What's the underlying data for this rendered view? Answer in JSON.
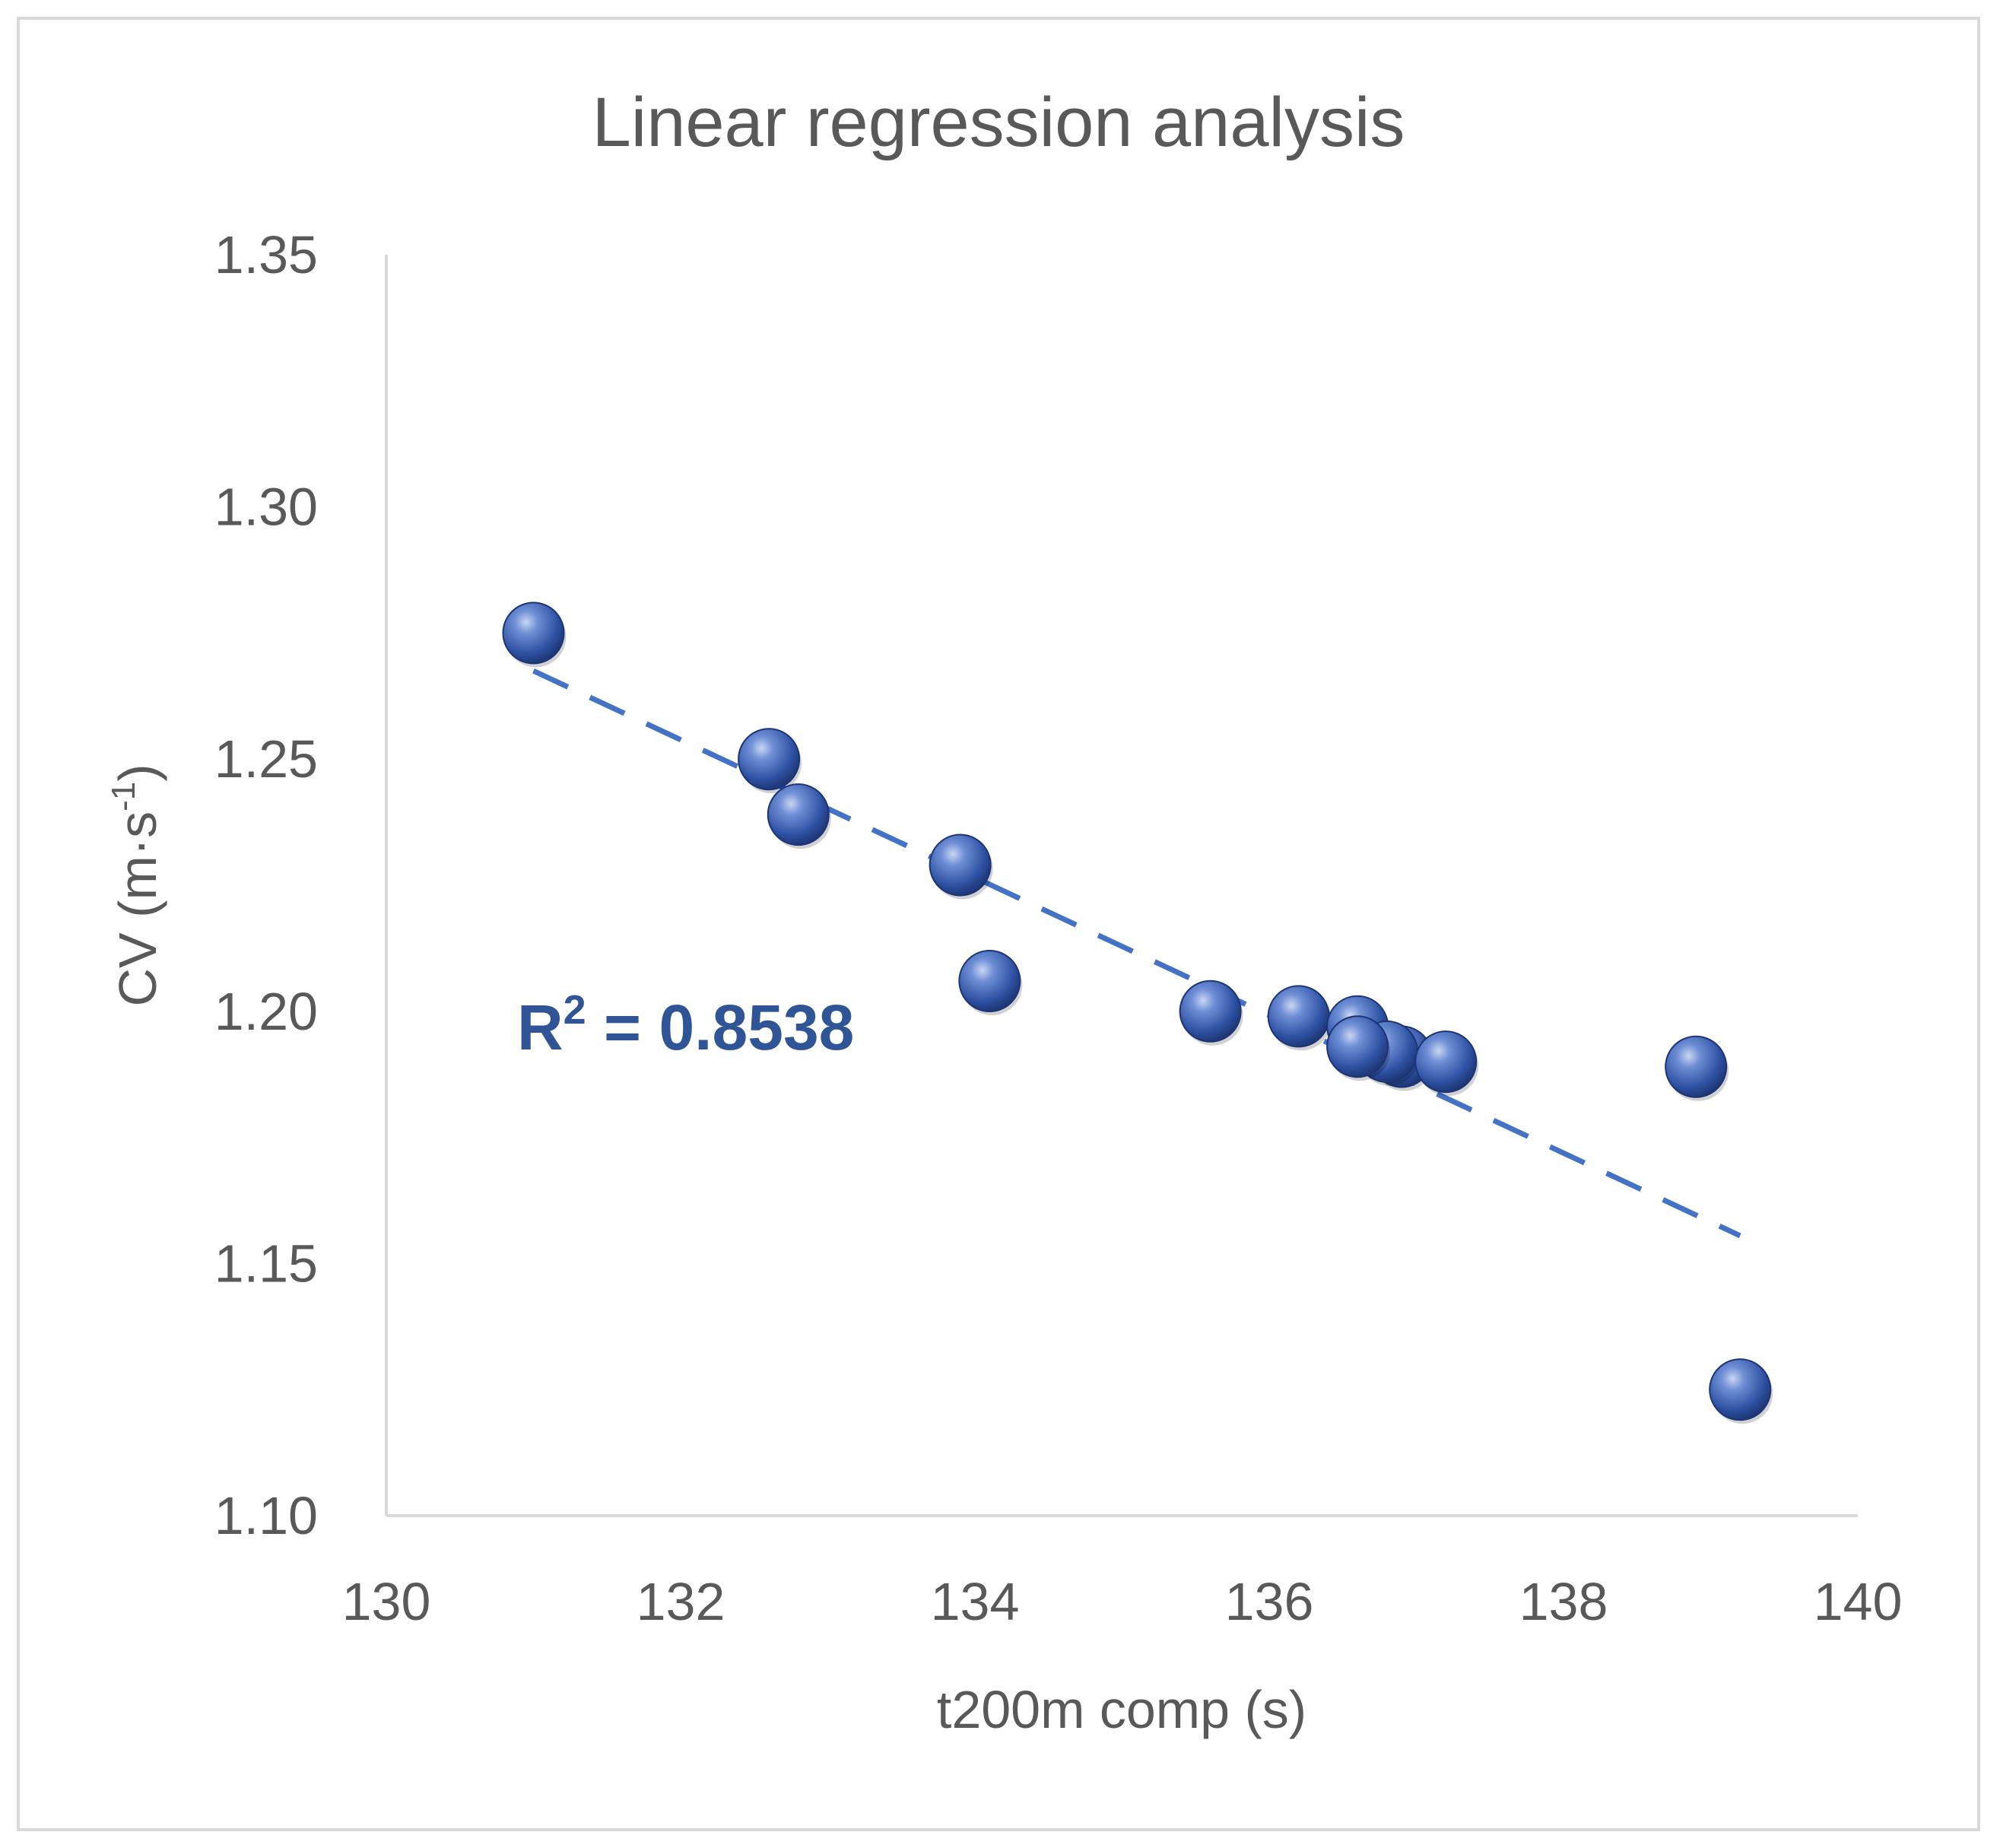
{
  "chart_data": {
    "type": "scatter",
    "title": "Linear regression analysis",
    "xlabel": "t200m comp (s)",
    "ylabel": {
      "main": "CV (m·s",
      "sup": "-1",
      "close": ")"
    },
    "xlim": [
      130,
      140
    ],
    "ylim": [
      1.1,
      1.35
    ],
    "x_ticks": [
      "130",
      "132",
      "134",
      "136",
      "138",
      "140"
    ],
    "y_ticks": [
      "1.10",
      "1.15",
      "1.20",
      "1.25",
      "1.30",
      "1.35"
    ],
    "grid": false,
    "series": [
      {
        "name": "CV",
        "color": "#3a5fb0",
        "points": [
          {
            "x": 131.0,
            "y": 1.275
          },
          {
            "x": 132.6,
            "y": 1.25
          },
          {
            "x": 132.8,
            "y": 1.239
          },
          {
            "x": 133.9,
            "y": 1.229
          },
          {
            "x": 134.1,
            "y": 1.206
          },
          {
            "x": 135.6,
            "y": 1.2
          },
          {
            "x": 136.2,
            "y": 1.199
          },
          {
            "x": 136.6,
            "y": 1.197
          },
          {
            "x": 136.9,
            "y": 1.191
          },
          {
            "x": 136.8,
            "y": 1.192
          },
          {
            "x": 136.6,
            "y": 1.193
          },
          {
            "x": 137.2,
            "y": 1.19
          },
          {
            "x": 138.9,
            "y": 1.189
          },
          {
            "x": 139.2,
            "y": 1.125
          }
        ]
      }
    ],
    "trendline": {
      "type": "linear",
      "x": [
        131.0,
        139.2
      ],
      "y": [
        1.2675,
        1.1555
      ],
      "color": "#4472c4",
      "style": "dashed"
    },
    "annotation": {
      "r2_prefix": "R",
      "r2_sup": "2",
      "r2_value": " = 0.8538"
    }
  }
}
